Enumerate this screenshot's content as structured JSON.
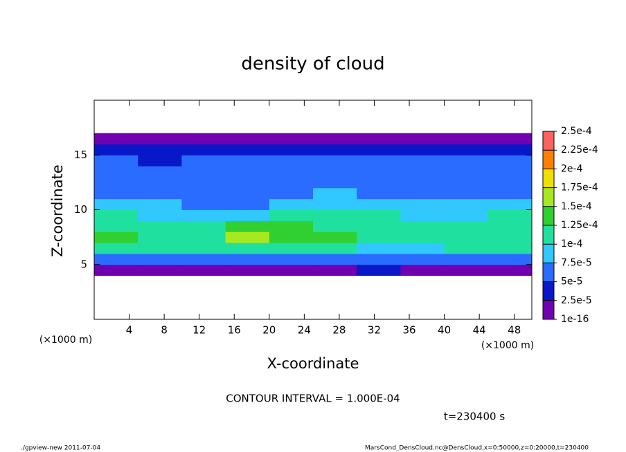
{
  "chart_data": {
    "type": "heatmap",
    "title": "density of cloud",
    "x_label": "X-coordinate",
    "y_label": "Z-coordinate",
    "x_unit": "(×1000 m)",
    "y_unit": "(×1000 m)",
    "xlim": [
      0,
      50
    ],
    "xticks": [
      4,
      8,
      12,
      16,
      20,
      24,
      28,
      32,
      36,
      40,
      44,
      48
    ],
    "ylim": [
      0,
      20
    ],
    "yticks": [
      5,
      10,
      15
    ],
    "x": [
      2.5,
      7.5,
      12.5,
      17.5,
      22.5,
      27.5,
      32.5,
      37.5,
      42.5,
      47.5
    ],
    "z": [
      4.5,
      5.5,
      6.5,
      7.5,
      8.5,
      9.5,
      10.5,
      11.5,
      12.5,
      13.5,
      14.5,
      15.5,
      16.5
    ],
    "values": [
      [
        2e-05,
        2e-05,
        2e-05,
        2e-05,
        2e-05,
        2e-05,
        4e-05,
        2e-05,
        2e-05,
        2e-05
      ],
      [
        6e-05,
        5.5e-05,
        6e-05,
        6.5e-05,
        6e-05,
        6e-05,
        5e-05,
        7e-05,
        6e-05,
        6e-05
      ],
      [
        0.000105,
        0.0001,
        0.0001,
        0.00011,
        0.00011,
        0.000105,
        8e-05,
        9e-05,
        0.0001,
        0.000105
      ],
      [
        0.000125,
        0.00012,
        0.00012,
        0.00016,
        0.00014,
        0.000125,
        0.0001,
        0.00011,
        0.00012,
        0.00012
      ],
      [
        0.00012,
        0.000115,
        0.000115,
        0.00014,
        0.00013,
        0.00012,
        0.000115,
        0.00011,
        0.00011,
        0.000115
      ],
      [
        0.000105,
        9.5e-05,
        9e-05,
        9.5e-05,
        0.0001,
        0.000105,
        0.000105,
        9.5e-05,
        9.5e-05,
        0.0001
      ],
      [
        8e-05,
        7.5e-05,
        7e-05,
        7e-05,
        7.5e-05,
        8e-05,
        8e-05,
        7.5e-05,
        7.5e-05,
        8e-05
      ],
      [
        7e-05,
        6.5e-05,
        6.5e-05,
        6.5e-05,
        7e-05,
        7.5e-05,
        7e-05,
        7e-05,
        7e-05,
        7e-05
      ],
      [
        6.5e-05,
        6e-05,
        6e-05,
        6e-05,
        6.5e-05,
        7e-05,
        6.5e-05,
        6.5e-05,
        7e-05,
        6.5e-05
      ],
      [
        6e-05,
        5.5e-05,
        5.5e-05,
        6e-05,
        6e-05,
        6.5e-05,
        6e-05,
        6e-05,
        6.5e-05,
        6e-05
      ],
      [
        5e-05,
        4.5e-05,
        5e-05,
        5e-05,
        5.5e-05,
        5.5e-05,
        5e-05,
        5e-05,
        5.5e-05,
        5e-05
      ],
      [
        3e-05,
        3e-05,
        3e-05,
        3e-05,
        3e-05,
        3e-05,
        3e-05,
        3e-05,
        3e-05,
        3e-05
      ],
      [
        1e-05,
        1e-05,
        1e-05,
        1e-05,
        1e-05,
        1e-05,
        1e-05,
        1e-05,
        1e-05,
        1e-05
      ]
    ],
    "colorbar": {
      "levels": [
        {
          "value": 1e-16,
          "label": "1e-16"
        },
        {
          "value": 2.5e-05,
          "label": "2.5e-5"
        },
        {
          "value": 5e-05,
          "label": "5e-5"
        },
        {
          "value": 7.5e-05,
          "label": "7.5e-5"
        },
        {
          "value": 0.0001,
          "label": "1e-4"
        },
        {
          "value": 0.000125,
          "label": "1.25e-4"
        },
        {
          "value": 0.00015,
          "label": "1.5e-4"
        },
        {
          "value": 0.000175,
          "label": "1.75e-4"
        },
        {
          "value": 0.0002,
          "label": "2e-4"
        },
        {
          "value": 0.000225,
          "label": "2.25e-4"
        },
        {
          "value": 0.00025,
          "label": "2.5e-4"
        }
      ],
      "colors": [
        "#7000b0",
        "#0818c8",
        "#2a6cff",
        "#30c8ff",
        "#20e0a0",
        "#30d030",
        "#a8e820",
        "#f0e000",
        "#ff8000",
        "#ff6060"
      ]
    },
    "contour_note": "CONTOUR INTERVAL = 1.000E-04",
    "time_note": "t=230400 s",
    "footer_left": "./gpview-new  2011-07-04",
    "footer_right": "MarsCond_DensCloud.nc@DensCloud,x=0:50000,z=0:20000,t=230400"
  }
}
